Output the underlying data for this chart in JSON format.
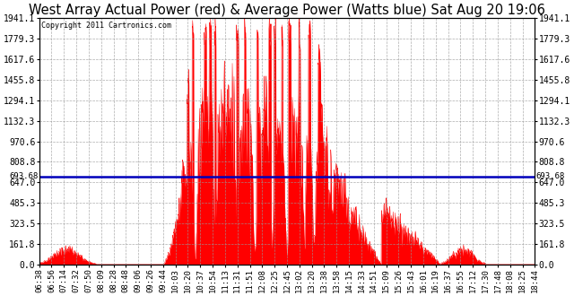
{
  "title": "West Array Actual Power (red) & Average Power (Watts blue) Sat Aug 20 19:06",
  "copyright": "Copyright 2011 Cartronics.com",
  "avg_power": 693.68,
  "y_max": 1941.1,
  "y_min": 0.0,
  "y_ticks": [
    0.0,
    161.8,
    323.5,
    485.3,
    647.0,
    808.8,
    970.6,
    1132.3,
    1294.1,
    1455.8,
    1617.6,
    1779.3,
    1941.1
  ],
  "x_labels": [
    "06:38",
    "06:56",
    "07:14",
    "07:32",
    "07:50",
    "08:09",
    "08:28",
    "08:48",
    "09:06",
    "09:26",
    "09:44",
    "10:03",
    "10:20",
    "10:37",
    "10:54",
    "11:13",
    "11:31",
    "11:51",
    "12:08",
    "12:25",
    "12:45",
    "13:02",
    "13:20",
    "13:38",
    "13:58",
    "14:15",
    "14:33",
    "14:51",
    "15:09",
    "15:26",
    "15:43",
    "16:01",
    "16:19",
    "16:37",
    "16:55",
    "17:12",
    "17:30",
    "17:48",
    "18:08",
    "18:25",
    "18:44"
  ],
  "fill_color": "#FF0000",
  "line_color": "#0000BB",
  "background_color": "#FFFFFF",
  "grid_color": "#999999",
  "title_fontsize": 10.5,
  "label_fontsize": 7.0
}
